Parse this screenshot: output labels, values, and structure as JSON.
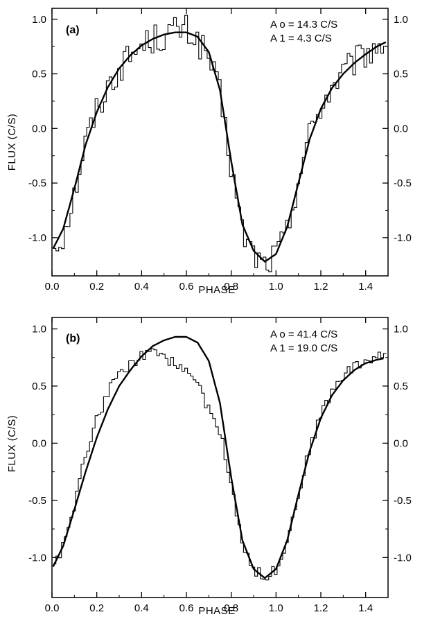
{
  "chart_data": [
    {
      "type": "line",
      "panel_label": "(a)",
      "xlabel": "PHASE",
      "ylabel": "FLUX (C/S)",
      "xlim": [
        0.0,
        1.5
      ],
      "ylim": [
        -1.35,
        1.1
      ],
      "x_ticks": [
        "0.0",
        "0.2",
        "0.4",
        "0.6",
        "0.8",
        "1.0",
        "1.2",
        "1.4"
      ],
      "y_ticks": [
        "1.0",
        "0.5",
        "0.0",
        "-0.5",
        "-1.0"
      ],
      "annotation": [
        "A o = 14.3 C/S",
        "A 1 = 4.3 C/S"
      ],
      "series": [
        {
          "style": "histogram",
          "x": [
            0.0,
            0.05,
            0.1,
            0.15,
            0.2,
            0.25,
            0.3,
            0.35,
            0.4,
            0.45,
            0.5,
            0.55,
            0.6,
            0.65,
            0.7,
            0.75,
            0.8,
            0.85,
            0.9,
            0.95,
            1.0,
            1.05,
            1.1,
            1.15,
            1.2,
            1.25,
            1.3,
            1.35,
            1.4,
            1.45,
            1.5
          ],
          "y": [
            -1.1,
            -0.98,
            -0.6,
            -0.12,
            0.17,
            0.38,
            0.55,
            0.66,
            0.76,
            0.82,
            0.84,
            0.9,
            0.9,
            0.8,
            0.65,
            0.3,
            -0.35,
            -0.95,
            -1.15,
            -1.25,
            -1.15,
            -0.95,
            -0.45,
            -0.05,
            0.2,
            0.38,
            0.5,
            0.6,
            0.68,
            0.75,
            0.82
          ],
          "noise": 0.14
        },
        {
          "style": "curve",
          "x": [
            0.0,
            0.05,
            0.1,
            0.15,
            0.2,
            0.25,
            0.3,
            0.35,
            0.4,
            0.45,
            0.5,
            0.55,
            0.6,
            0.65,
            0.7,
            0.75,
            0.8,
            0.85,
            0.9,
            0.95,
            1.0,
            1.05,
            1.1,
            1.15,
            1.2,
            1.25,
            1.3,
            1.35,
            1.4,
            1.45,
            1.5
          ],
          "y": [
            -1.12,
            -0.92,
            -0.55,
            -0.15,
            0.15,
            0.38,
            0.55,
            0.67,
            0.76,
            0.82,
            0.86,
            0.88,
            0.88,
            0.84,
            0.7,
            0.35,
            -0.3,
            -0.88,
            -1.12,
            -1.22,
            -1.15,
            -0.9,
            -0.5,
            -0.1,
            0.18,
            0.37,
            0.5,
            0.6,
            0.68,
            0.75,
            0.8
          ]
        }
      ]
    },
    {
      "type": "line",
      "panel_label": "(b)",
      "xlabel": "PHASE",
      "ylabel": "FLUX (C/S)",
      "xlim": [
        0.0,
        1.5
      ],
      "ylim": [
        -1.35,
        1.1
      ],
      "x_ticks": [
        "0.0",
        "0.2",
        "0.4",
        "0.6",
        "0.8",
        "1.0",
        "1.2",
        "1.4"
      ],
      "y_ticks": [
        "1.0",
        "0.5",
        "0.0",
        "-0.5",
        "-1.0"
      ],
      "annotation": [
        "A o = 41.4 C/S",
        "A 1 = 19.0 C/S"
      ],
      "series": [
        {
          "style": "histogram",
          "x": [
            0.0,
            0.05,
            0.1,
            0.15,
            0.2,
            0.25,
            0.3,
            0.35,
            0.4,
            0.45,
            0.5,
            0.55,
            0.6,
            0.65,
            0.7,
            0.75,
            0.8,
            0.85,
            0.9,
            0.95,
            1.0,
            1.05,
            1.1,
            1.15,
            1.2,
            1.25,
            1.3,
            1.35,
            1.4,
            1.45,
            1.5
          ],
          "y": [
            -1.1,
            -0.9,
            -0.55,
            -0.1,
            0.2,
            0.45,
            0.6,
            0.7,
            0.76,
            0.78,
            0.75,
            0.7,
            0.65,
            0.5,
            0.3,
            0.1,
            -0.35,
            -0.85,
            -1.1,
            -1.18,
            -1.1,
            -0.85,
            -0.45,
            -0.05,
            0.25,
            0.45,
            0.6,
            0.67,
            0.72,
            0.75,
            0.78
          ],
          "noise": 0.05
        },
        {
          "style": "curve",
          "x": [
            0.0,
            0.05,
            0.1,
            0.15,
            0.2,
            0.25,
            0.3,
            0.35,
            0.4,
            0.45,
            0.5,
            0.55,
            0.6,
            0.65,
            0.7,
            0.75,
            0.8,
            0.85,
            0.9,
            0.95,
            1.0,
            1.05,
            1.1,
            1.15,
            1.2,
            1.25,
            1.3,
            1.35,
            1.4,
            1.45,
            1.5
          ],
          "y": [
            -1.1,
            -0.9,
            -0.58,
            -0.25,
            0.05,
            0.3,
            0.5,
            0.64,
            0.76,
            0.85,
            0.9,
            0.93,
            0.93,
            0.88,
            0.72,
            0.35,
            -0.3,
            -0.85,
            -1.1,
            -1.18,
            -1.1,
            -0.85,
            -0.45,
            -0.07,
            0.22,
            0.42,
            0.55,
            0.64,
            0.7,
            0.73,
            0.75
          ]
        }
      ]
    }
  ]
}
